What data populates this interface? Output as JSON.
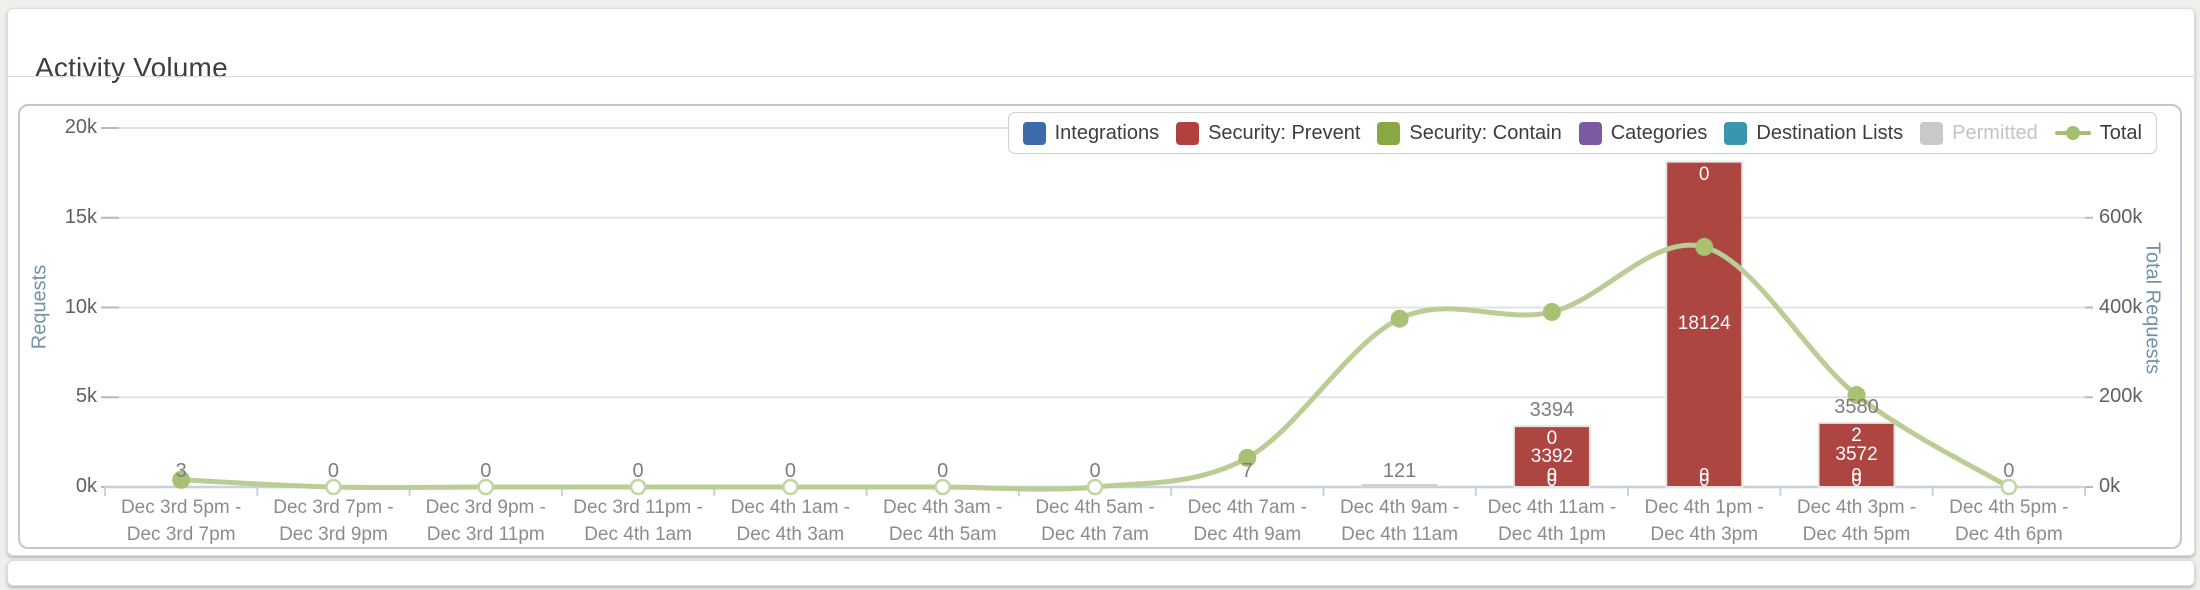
{
  "title_card": {
    "title": "Activity Volume"
  },
  "chart": {
    "left_axis": {
      "label": "Requests",
      "max": 20000,
      "tick_labels": [
        "0k",
        "5k",
        "10k",
        "15k",
        "20k"
      ],
      "tick_values": [
        0,
        5000,
        10000,
        15000,
        20000
      ]
    },
    "right_axis": {
      "label": "Total Requests",
      "max": 800000,
      "tick_labels": [
        "0k",
        "200k",
        "400k",
        "600k"
      ],
      "tick_values": [
        0,
        200000,
        400000,
        600000
      ]
    },
    "legend": {
      "items": [
        {
          "label": "Integrations",
          "color": "#3c6cab",
          "marker": "box",
          "disabled": false
        },
        {
          "label": "Security: Prevent",
          "color": "#b2413d",
          "marker": "box",
          "disabled": false
        },
        {
          "label": "Security: Contain",
          "color": "#8aa746",
          "marker": "box",
          "disabled": false
        },
        {
          "label": "Categories",
          "color": "#7a5ba1",
          "marker": "box",
          "disabled": false
        },
        {
          "label": "Destination Lists",
          "color": "#3996ac",
          "marker": "box",
          "disabled": false
        },
        {
          "label": "Permitted",
          "color": "#c9c9c9",
          "marker": "box",
          "disabled": true
        },
        {
          "label": "Total",
          "color": "#a4c06e",
          "marker": "line",
          "disabled": false
        }
      ]
    },
    "colors": {
      "bar": "#ad4540",
      "bar_edge": "#e8e6e2",
      "tiny_bar": "#d3d1cd",
      "line": "#b9cd94",
      "marker_solid": "#a8c172",
      "marker_hollow_stroke": "#c2d5a0",
      "grid": "#e3e3e3",
      "axis_line": "#c6d3de",
      "tick_dash": "#b9b9b9"
    }
  },
  "chart_data": {
    "type": "bar",
    "title": "Activity Volume",
    "categories_lines": [
      [
        "Dec 3rd 5pm -",
        "Dec 3rd 7pm"
      ],
      [
        "Dec 3rd 7pm -",
        "Dec 3rd 9pm"
      ],
      [
        "Dec 3rd 9pm -",
        "Dec 3rd 11pm"
      ],
      [
        "Dec 3rd 11pm -",
        "Dec 4th 1am"
      ],
      [
        "Dec 4th 1am -",
        "Dec 4th 3am"
      ],
      [
        "Dec 4th 3am -",
        "Dec 4th 5am"
      ],
      [
        "Dec 4th 5am -",
        "Dec 4th 7am"
      ],
      [
        "Dec 4th 7am -",
        "Dec 4th 9am"
      ],
      [
        "Dec 4th 9am -",
        "Dec 4th 11am"
      ],
      [
        "Dec 4th 11am -",
        "Dec 4th 1pm"
      ],
      [
        "Dec 4th 1pm -",
        "Dec 4th 3pm"
      ],
      [
        "Dec 4th 3pm -",
        "Dec 4th 5pm"
      ],
      [
        "Dec 4th 5pm -",
        "Dec 4th 6pm"
      ]
    ],
    "series": [
      {
        "name": "Security: Prevent",
        "render": "column",
        "axis": "left",
        "values": [
          3,
          0,
          0,
          0,
          0,
          0,
          0,
          7,
          121,
          3392,
          18124,
          3572,
          0
        ]
      },
      {
        "name": "Total",
        "render": "spline",
        "axis": "right",
        "estimated": true,
        "values": [
          16000,
          0,
          0,
          0,
          0,
          0,
          0,
          65000,
          375000,
          390000,
          535000,
          205000,
          0
        ]
      }
    ],
    "stack_total_labels": [
      "3",
      "0",
      "0",
      "0",
      "0",
      "0",
      "0",
      "7",
      "121",
      "3394",
      null,
      "3580",
      "0"
    ],
    "bar_inner_labels": [
      {
        "index": 9,
        "top": "0",
        "center": "3392",
        "bottom": [
          "0",
          "0"
        ]
      },
      {
        "index": 10,
        "top": "0",
        "center": "18124",
        "bottom": [
          "0",
          "0"
        ]
      },
      {
        "index": 11,
        "top": "2",
        "center": "3572",
        "bottom": [
          "0",
          "0"
        ]
      }
    ],
    "ylabel_left": "Requests",
    "ylabel_right": "Total Requests",
    "ylim_left": [
      0,
      20000
    ],
    "ylim_right": [
      0,
      800000
    ],
    "grid": true,
    "legend_position": "top-right"
  }
}
